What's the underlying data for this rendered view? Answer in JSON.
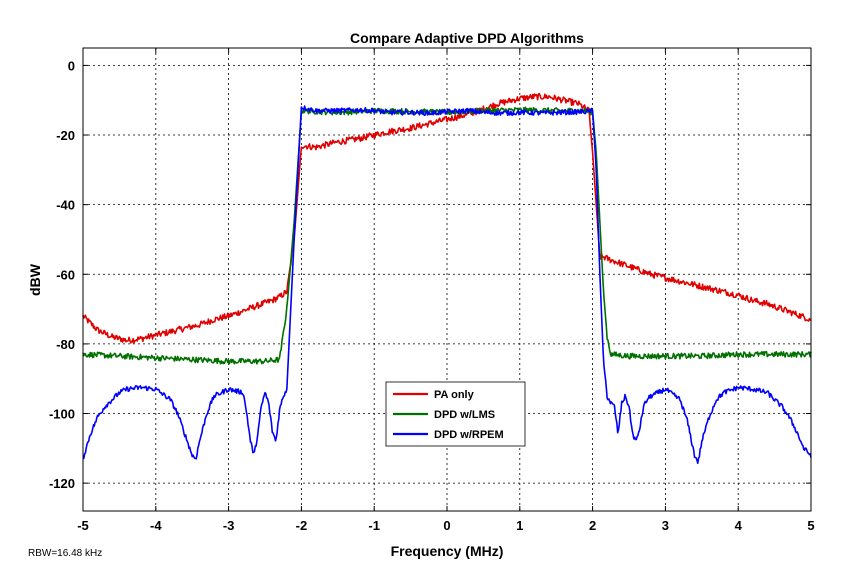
{
  "chart_data": {
    "type": "line",
    "title": "Compare Adaptive DPD Algorithms",
    "xlabel": "Frequency (MHz)",
    "ylabel": "dBW",
    "xlim": [
      -5,
      5
    ],
    "ylim": [
      -128,
      5
    ],
    "xticks": [
      -5,
      -4,
      -3,
      -2,
      -1,
      0,
      1,
      2,
      3,
      4,
      5
    ],
    "yticks": [
      0,
      -20,
      -40,
      -60,
      -80,
      -100,
      -120
    ],
    "grid": true,
    "legend_position": "center-bottom",
    "footnote": "RBW=16.48 kHz",
    "series": [
      {
        "name": "PA only",
        "color": "#e00000",
        "x": [
          -5,
          -4.8,
          -4.6,
          -4.4,
          -4.2,
          -4.0,
          -3.8,
          -3.6,
          -3.4,
          -3.2,
          -3.0,
          -2.8,
          -2.6,
          -2.4,
          -2.3,
          -2.2,
          -2.1,
          -2.0,
          -1.8,
          -1.5,
          -1.2,
          -1.0,
          -0.8,
          -0.5,
          -0.2,
          0.0,
          0.3,
          0.5,
          0.7,
          0.9,
          1.0,
          1.2,
          1.4,
          1.6,
          1.8,
          1.95,
          2.0,
          2.05,
          2.1,
          2.15,
          2.2,
          2.4,
          2.6,
          2.8,
          3.0,
          3.2,
          3.4,
          3.6,
          3.8,
          4.0,
          4.2,
          4.4,
          4.6,
          4.8,
          5.0
        ],
        "y": [
          -72,
          -76,
          -78,
          -79,
          -78.5,
          -77.5,
          -76.5,
          -75.5,
          -74.5,
          -73,
          -72,
          -70.5,
          -69,
          -67.5,
          -66.5,
          -65,
          -50,
          -23,
          -23.5,
          -22,
          -21,
          -20,
          -19,
          -18,
          -16.5,
          -15.5,
          -14,
          -12.5,
          -11,
          -10,
          -9.5,
          -9,
          -9,
          -10,
          -11,
          -13,
          -25,
          -40,
          -55,
          -55,
          -55.5,
          -57,
          -58.5,
          -60,
          -61,
          -62,
          -63,
          -64,
          -65,
          -66,
          -67.5,
          -68.5,
          -70,
          -71.5,
          -73
        ]
      },
      {
        "name": "DPD w/LMS",
        "color": "#007000",
        "x": [
          -5,
          -4.5,
          -4.0,
          -3.5,
          -3.0,
          -2.5,
          -2.3,
          -2.2,
          -2.1,
          -2.0,
          -1.5,
          -1.0,
          -0.5,
          0.0,
          0.5,
          1.0,
          1.5,
          1.9,
          2.0,
          2.05,
          2.1,
          2.15,
          2.2,
          2.25,
          2.5,
          3.0,
          3.5,
          4.0,
          4.5,
          5.0
        ],
        "y": [
          -83,
          -83.5,
          -84,
          -84.5,
          -85,
          -85,
          -84.5,
          -70,
          -45,
          -13,
          -13.5,
          -13,
          -13.2,
          -13.5,
          -13,
          -12.8,
          -13,
          -13,
          -13.5,
          -25,
          -45,
          -65,
          -78,
          -83,
          -83.5,
          -83.5,
          -83.5,
          -83,
          -83,
          -83
        ]
      },
      {
        "name": "DPD w/RPEM",
        "color": "#0000ff",
        "x": [
          -5,
          -4.9,
          -4.8,
          -4.7,
          -4.6,
          -4.5,
          -4.4,
          -4.2,
          -4.0,
          -3.8,
          -3.7,
          -3.6,
          -3.5,
          -3.45,
          -3.4,
          -3.3,
          -3.2,
          -3.0,
          -2.8,
          -2.75,
          -2.7,
          -2.65,
          -2.6,
          -2.55,
          -2.5,
          -2.45,
          -2.4,
          -2.35,
          -2.3,
          -2.25,
          -2.2,
          -2.1,
          -2.0,
          -1.8,
          -1.5,
          -1.2,
          -1.0,
          -0.8,
          -0.5,
          -0.2,
          0.0,
          0.3,
          0.5,
          0.8,
          1.0,
          1.3,
          1.6,
          1.9,
          2.0,
          2.05,
          2.1,
          2.15,
          2.2,
          2.25,
          2.3,
          2.35,
          2.4,
          2.45,
          2.5,
          2.55,
          2.6,
          2.65,
          2.7,
          2.75,
          2.8,
          3.0,
          3.2,
          3.3,
          3.4,
          3.45,
          3.5,
          3.6,
          3.7,
          3.8,
          4.0,
          4.2,
          4.4,
          4.5,
          4.6,
          4.7,
          4.8,
          4.9,
          5.0
        ],
        "y": [
          -113,
          -106,
          -101,
          -98,
          -96,
          -94,
          -93,
          -92.5,
          -93,
          -96,
          -100,
          -106,
          -112,
          -113,
          -108,
          -100,
          -95,
          -93,
          -94,
          -100,
          -108,
          -112,
          -106,
          -98,
          -94,
          -97,
          -105,
          -108,
          -99,
          -95,
          -93,
          -50,
          -12,
          -13,
          -13,
          -12.8,
          -13,
          -13.5,
          -13.5,
          -13.7,
          -13.3,
          -13,
          -13.5,
          -13.7,
          -13.5,
          -13.7,
          -13.5,
          -13.3,
          -13,
          -30,
          -60,
          -85,
          -95,
          -97,
          -98,
          -106,
          -97,
          -95,
          -98,
          -106,
          -108,
          -104,
          -98,
          -96,
          -95,
          -93,
          -96,
          -102,
          -112,
          -114,
          -108,
          -101,
          -96,
          -94,
          -92.5,
          -93,
          -94,
          -96,
          -98,
          -101,
          -105,
          -110,
          -112
        ]
      }
    ]
  }
}
